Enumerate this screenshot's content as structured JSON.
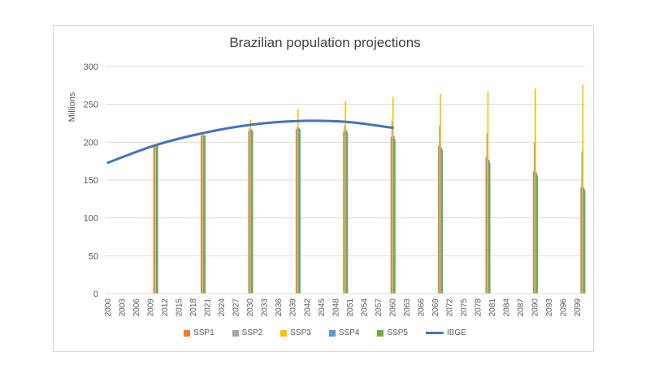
{
  "chart_data": {
    "type": "bar+line",
    "title": "Brazilian population projections",
    "ylabel": "Millions",
    "xlabel": "",
    "ylim": [
      0,
      300
    ],
    "yticks": [
      0,
      50,
      100,
      150,
      200,
      250,
      300
    ],
    "xlim": [
      2000,
      2100
    ],
    "xtick_labels": [
      "2000",
      "2003",
      "2006",
      "2009",
      "2012",
      "2015",
      "2018",
      "2021",
      "2024",
      "2027",
      "2030",
      "2033",
      "2036",
      "2039",
      "2042",
      "2045",
      "2048",
      "2051",
      "2054",
      "2057",
      "2060",
      "2063",
      "2066",
      "2069",
      "2072",
      "2075",
      "2078",
      "2081",
      "2084",
      "2087",
      "2090",
      "2093",
      "2096",
      "2099"
    ],
    "grid": true,
    "legend_position": "bottom",
    "bar_years": [
      2010,
      2020,
      2030,
      2040,
      2050,
      2060,
      2070,
      2080,
      2090,
      2100
    ],
    "series": [
      {
        "name": "SSP1",
        "kind": "bar",
        "color": "#ed7d31",
        "values": [
          195,
          209,
          215,
          217,
          214,
          207,
          195,
          180,
          162,
          141
        ]
      },
      {
        "name": "SSP2",
        "kind": "bar",
        "color": "#a5a5a5",
        "values": [
          195,
          209,
          218,
          220,
          222,
          228,
          222,
          212,
          200,
          188
        ]
      },
      {
        "name": "SSP3",
        "kind": "bar",
        "color": "#ffc000",
        "values": [
          196,
          211,
          230,
          244,
          254,
          260,
          264,
          267,
          271,
          276
        ]
      },
      {
        "name": "SSP4",
        "kind": "bar",
        "color": "#5b9bd5",
        "values": [
          195,
          209,
          217,
          219,
          216,
          208,
          193,
          177,
          160,
          140
        ]
      },
      {
        "name": "SSP5",
        "kind": "bar",
        "color": "#70ad47",
        "values": [
          195,
          209,
          215,
          217,
          213,
          204,
          190,
          173,
          156,
          137
        ]
      },
      {
        "name": "IBGE",
        "kind": "line",
        "color": "#4472c4",
        "x": [
          2000,
          2010,
          2020,
          2030,
          2040,
          2050,
          2060
        ],
        "values": [
          173,
          196,
          212,
          223,
          228,
          227,
          219
        ]
      }
    ]
  }
}
